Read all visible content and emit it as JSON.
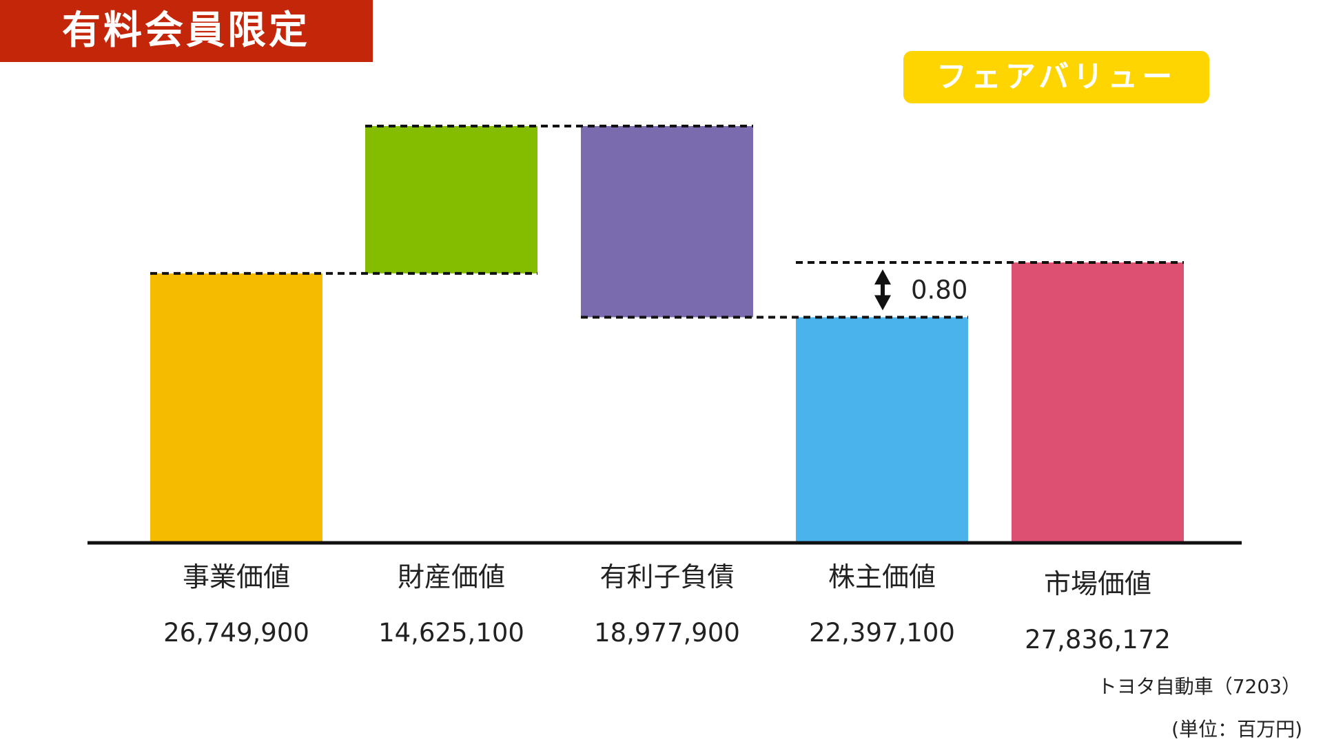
{
  "banner": {
    "label": "有料会員限定"
  },
  "badge": {
    "label": "フェアバリュー"
  },
  "company": "トヨタ自動車（7203）",
  "unit_note": "(単位：百万円)",
  "gap": {
    "label": "0.80"
  },
  "chart_data": {
    "type": "bar",
    "subtype": "waterfall",
    "categories": [
      "事業価値",
      "財産価値",
      "有利子負債",
      "株主価値",
      "市場価値"
    ],
    "values": [
      26749900,
      14625100,
      18977900,
      22397100,
      27836172
    ],
    "value_labels": [
      "26,749,900",
      "14,625,100",
      "18,977,900",
      "22,397,100",
      "27,836,172"
    ],
    "colors": [
      "#f5bb00",
      "#84bd00",
      "#7a6baf",
      "#4ab3ec",
      "#de5072"
    ],
    "steps": [
      "total",
      "increase",
      "decrease",
      "total",
      "total"
    ],
    "ratio_annotation": "0.80",
    "xlabel": "",
    "ylabel": "",
    "grid": false,
    "legend": "none"
  }
}
